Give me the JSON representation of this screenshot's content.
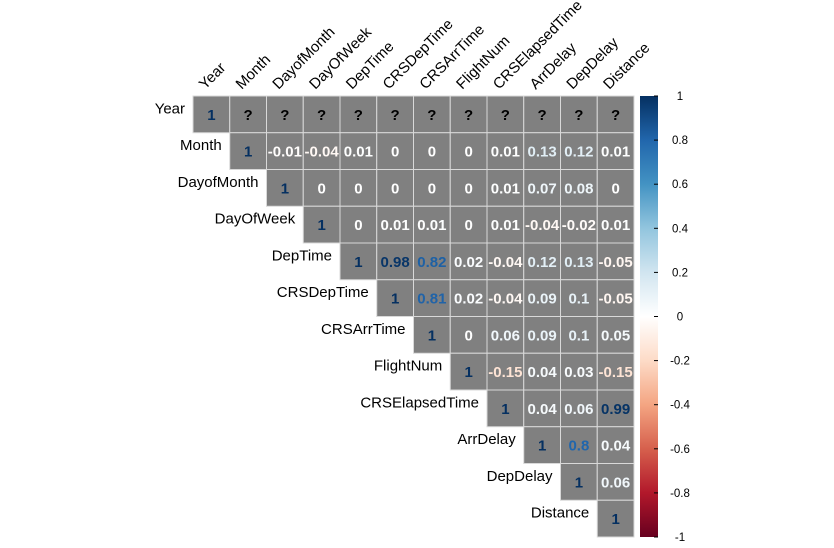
{
  "chart_data": {
    "type": "heatmap",
    "variables": [
      "Year",
      "Month",
      "DayofMonth",
      "DayOfWeek",
      "DepTime",
      "CRSDepTime",
      "CRSArrTime",
      "FlightNum",
      "CRSElapsedTime",
      "ArrDelay",
      "DepDelay",
      "Distance"
    ],
    "matrix": [
      [
        "1",
        "?",
        "?",
        "?",
        "?",
        "?",
        "?",
        "?",
        "?",
        "?",
        "?",
        "?"
      ],
      [
        "",
        "1",
        "-0.01",
        "-0.04",
        "0.01",
        "0",
        "0",
        "0",
        "0.01",
        "0.13",
        "0.12",
        "0.01"
      ],
      [
        "",
        "",
        "1",
        "0",
        "0",
        "0",
        "0",
        "0",
        "0.01",
        "0.07",
        "0.08",
        "0"
      ],
      [
        "",
        "",
        "",
        "1",
        "0",
        "0.01",
        "0.01",
        "0",
        "0.01",
        "-0.04",
        "-0.02",
        "0.01"
      ],
      [
        "",
        "",
        "",
        "",
        "1",
        "0.98",
        "0.82",
        "0.02",
        "-0.04",
        "0.12",
        "0.13",
        "-0.05"
      ],
      [
        "",
        "",
        "",
        "",
        "",
        "1",
        "0.81",
        "0.02",
        "-0.04",
        "0.09",
        "0.1",
        "-0.05"
      ],
      [
        "",
        "",
        "",
        "",
        "",
        "",
        "1",
        "0",
        "0.06",
        "0.09",
        "0.1",
        "0.05"
      ],
      [
        "",
        "",
        "",
        "",
        "",
        "",
        "",
        "1",
        "-0.15",
        "0.04",
        "0.03",
        "-0.15"
      ],
      [
        "",
        "",
        "",
        "",
        "",
        "",
        "",
        "",
        "1",
        "0.04",
        "0.06",
        "0.99"
      ],
      [
        "",
        "",
        "",
        "",
        "",
        "",
        "",
        "",
        "",
        "1",
        "0.8",
        "0.04"
      ],
      [
        "",
        "",
        "",
        "",
        "",
        "",
        "",
        "",
        "",
        "",
        "1",
        "0.06"
      ],
      [
        "",
        "",
        "",
        "",
        "",
        "",
        "",
        "",
        "",
        "",
        "",
        "1"
      ]
    ],
    "color_scale": {
      "range": [
        -1,
        1
      ],
      "ticks": [
        "1",
        "0.8",
        "0.6",
        "0.4",
        "0.2",
        "0",
        "-0.2",
        "-0.4",
        "-0.6",
        "-0.8",
        "-1"
      ],
      "colors": [
        "#67001F",
        "#B2182B",
        "#D6604D",
        "#F4A582",
        "#FDDBC7",
        "#FFFFFF",
        "#D1E5F0",
        "#92C5DE",
        "#4393C3",
        "#2166AC",
        "#053061"
      ]
    },
    "cell_background": "#808080",
    "missing_text_color": "#000000"
  }
}
